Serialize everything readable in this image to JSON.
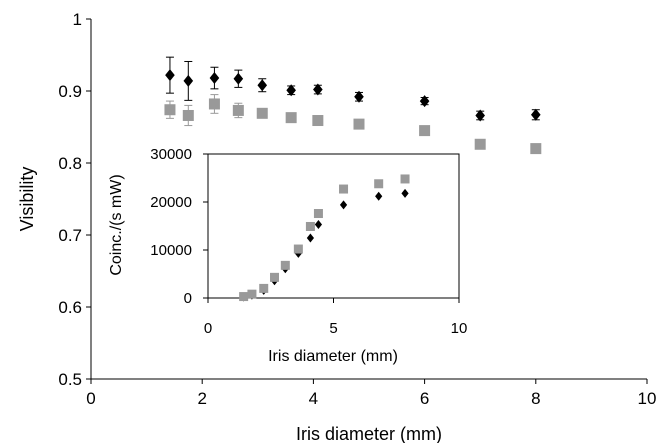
{
  "chart_data": [
    {
      "type": "scatter",
      "title": "",
      "xlabel": "Iris diameter (mm)",
      "ylabel": "Visibility",
      "xlim": [
        0,
        10
      ],
      "ylim": [
        0.5,
        1
      ],
      "xticks": [
        0,
        2,
        4,
        6,
        8,
        10
      ],
      "yticks": [
        0.5,
        0.6,
        0.7,
        0.8,
        0.9,
        1
      ],
      "grid": false,
      "legend": "none",
      "series": [
        {
          "marker": "diamond",
          "color": "#000000",
          "points": [
            {
              "x": 1.42,
              "y": 0.922,
              "err": 0.025
            },
            {
              "x": 1.75,
              "y": 0.914,
              "err": 0.027
            },
            {
              "x": 2.22,
              "y": 0.918,
              "err": 0.015
            },
            {
              "x": 2.65,
              "y": 0.917,
              "err": 0.012
            },
            {
              "x": 3.08,
              "y": 0.908,
              "err": 0.009
            },
            {
              "x": 3.6,
              "y": 0.901,
              "err": 0.006
            },
            {
              "x": 4.08,
              "y": 0.902,
              "err": 0.006
            },
            {
              "x": 4.82,
              "y": 0.892,
              "err": 0.006
            },
            {
              "x": 6.0,
              "y": 0.886,
              "err": 0.005
            },
            {
              "x": 7.0,
              "y": 0.866,
              "err": 0.006
            },
            {
              "x": 8.0,
              "y": 0.867,
              "err": 0.007
            }
          ]
        },
        {
          "marker": "square",
          "color": "#999999",
          "points": [
            {
              "x": 1.42,
              "y": 0.874,
              "err": 0.012
            },
            {
              "x": 1.75,
              "y": 0.866,
              "err": 0.014
            },
            {
              "x": 2.22,
              "y": 0.882,
              "err": 0.013
            },
            {
              "x": 2.65,
              "y": 0.873,
              "err": 0.01
            },
            {
              "x": 3.08,
              "y": 0.869,
              "err": 0.006
            },
            {
              "x": 3.6,
              "y": 0.863,
              "err": 0.006
            },
            {
              "x": 4.08,
              "y": 0.859,
              "err": 0.005
            },
            {
              "x": 4.82,
              "y": 0.854,
              "err": 0.004
            },
            {
              "x": 6.0,
              "y": 0.845,
              "err": 0
            },
            {
              "x": 7.0,
              "y": 0.826,
              "err": 0
            },
            {
              "x": 8.0,
              "y": 0.82,
              "err": 0
            }
          ]
        }
      ]
    },
    {
      "type": "scatter",
      "title": "",
      "xlabel": "Iris diameter (mm)",
      "ylabel": "Coinc./(s mW)",
      "xlim": [
        0,
        10
      ],
      "ylim": [
        0,
        30000
      ],
      "xticks": [
        0,
        5,
        10
      ],
      "yticks": [
        0,
        10000,
        20000,
        30000
      ],
      "grid": false,
      "legend": "none",
      "series": [
        {
          "marker": "diamond",
          "color": "#000000",
          "points": [
            {
              "x": 1.42,
              "y": 200
            },
            {
              "x": 1.75,
              "y": 600
            },
            {
              "x": 2.22,
              "y": 1600
            },
            {
              "x": 2.65,
              "y": 3600
            },
            {
              "x": 3.08,
              "y": 6100
            },
            {
              "x": 3.6,
              "y": 9300
            },
            {
              "x": 4.08,
              "y": 12500
            },
            {
              "x": 4.4,
              "y": 15300
            },
            {
              "x": 5.4,
              "y": 19400
            },
            {
              "x": 6.8,
              "y": 21200
            },
            {
              "x": 7.85,
              "y": 21800
            }
          ]
        },
        {
          "marker": "square",
          "color": "#999999",
          "points": [
            {
              "x": 1.42,
              "y": 300
            },
            {
              "x": 1.75,
              "y": 800
            },
            {
              "x": 2.22,
              "y": 2000
            },
            {
              "x": 2.65,
              "y": 4300
            },
            {
              "x": 3.08,
              "y": 6800
            },
            {
              "x": 3.6,
              "y": 10200
            },
            {
              "x": 4.08,
              "y": 14900
            },
            {
              "x": 4.4,
              "y": 17600
            },
            {
              "x": 5.4,
              "y": 22700
            },
            {
              "x": 6.8,
              "y": 23800
            },
            {
              "x": 7.85,
              "y": 24800
            }
          ]
        }
      ]
    }
  ]
}
